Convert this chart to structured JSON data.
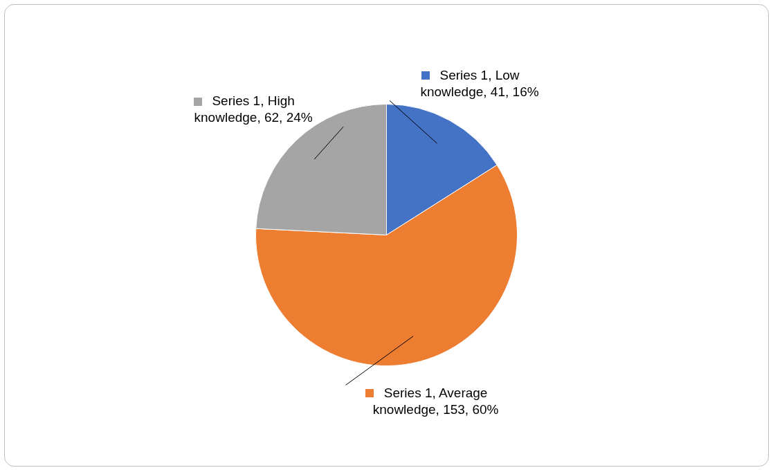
{
  "chart_data": {
    "type": "pie",
    "categories": [
      null,
      null,
      null
    ],
    "values": [
      41,
      153,
      62
    ],
    "colors": [
      "#4472c4",
      "#ed7d31",
      "#a5a5a5"
    ],
    "value_labels": [
      "Series 1, Low knowledge, 41, 16%",
      "Series 1, Average knowledge, 153, 60%",
      "Series 1, High knowledge, 62, 24%"
    ]
  }
}
